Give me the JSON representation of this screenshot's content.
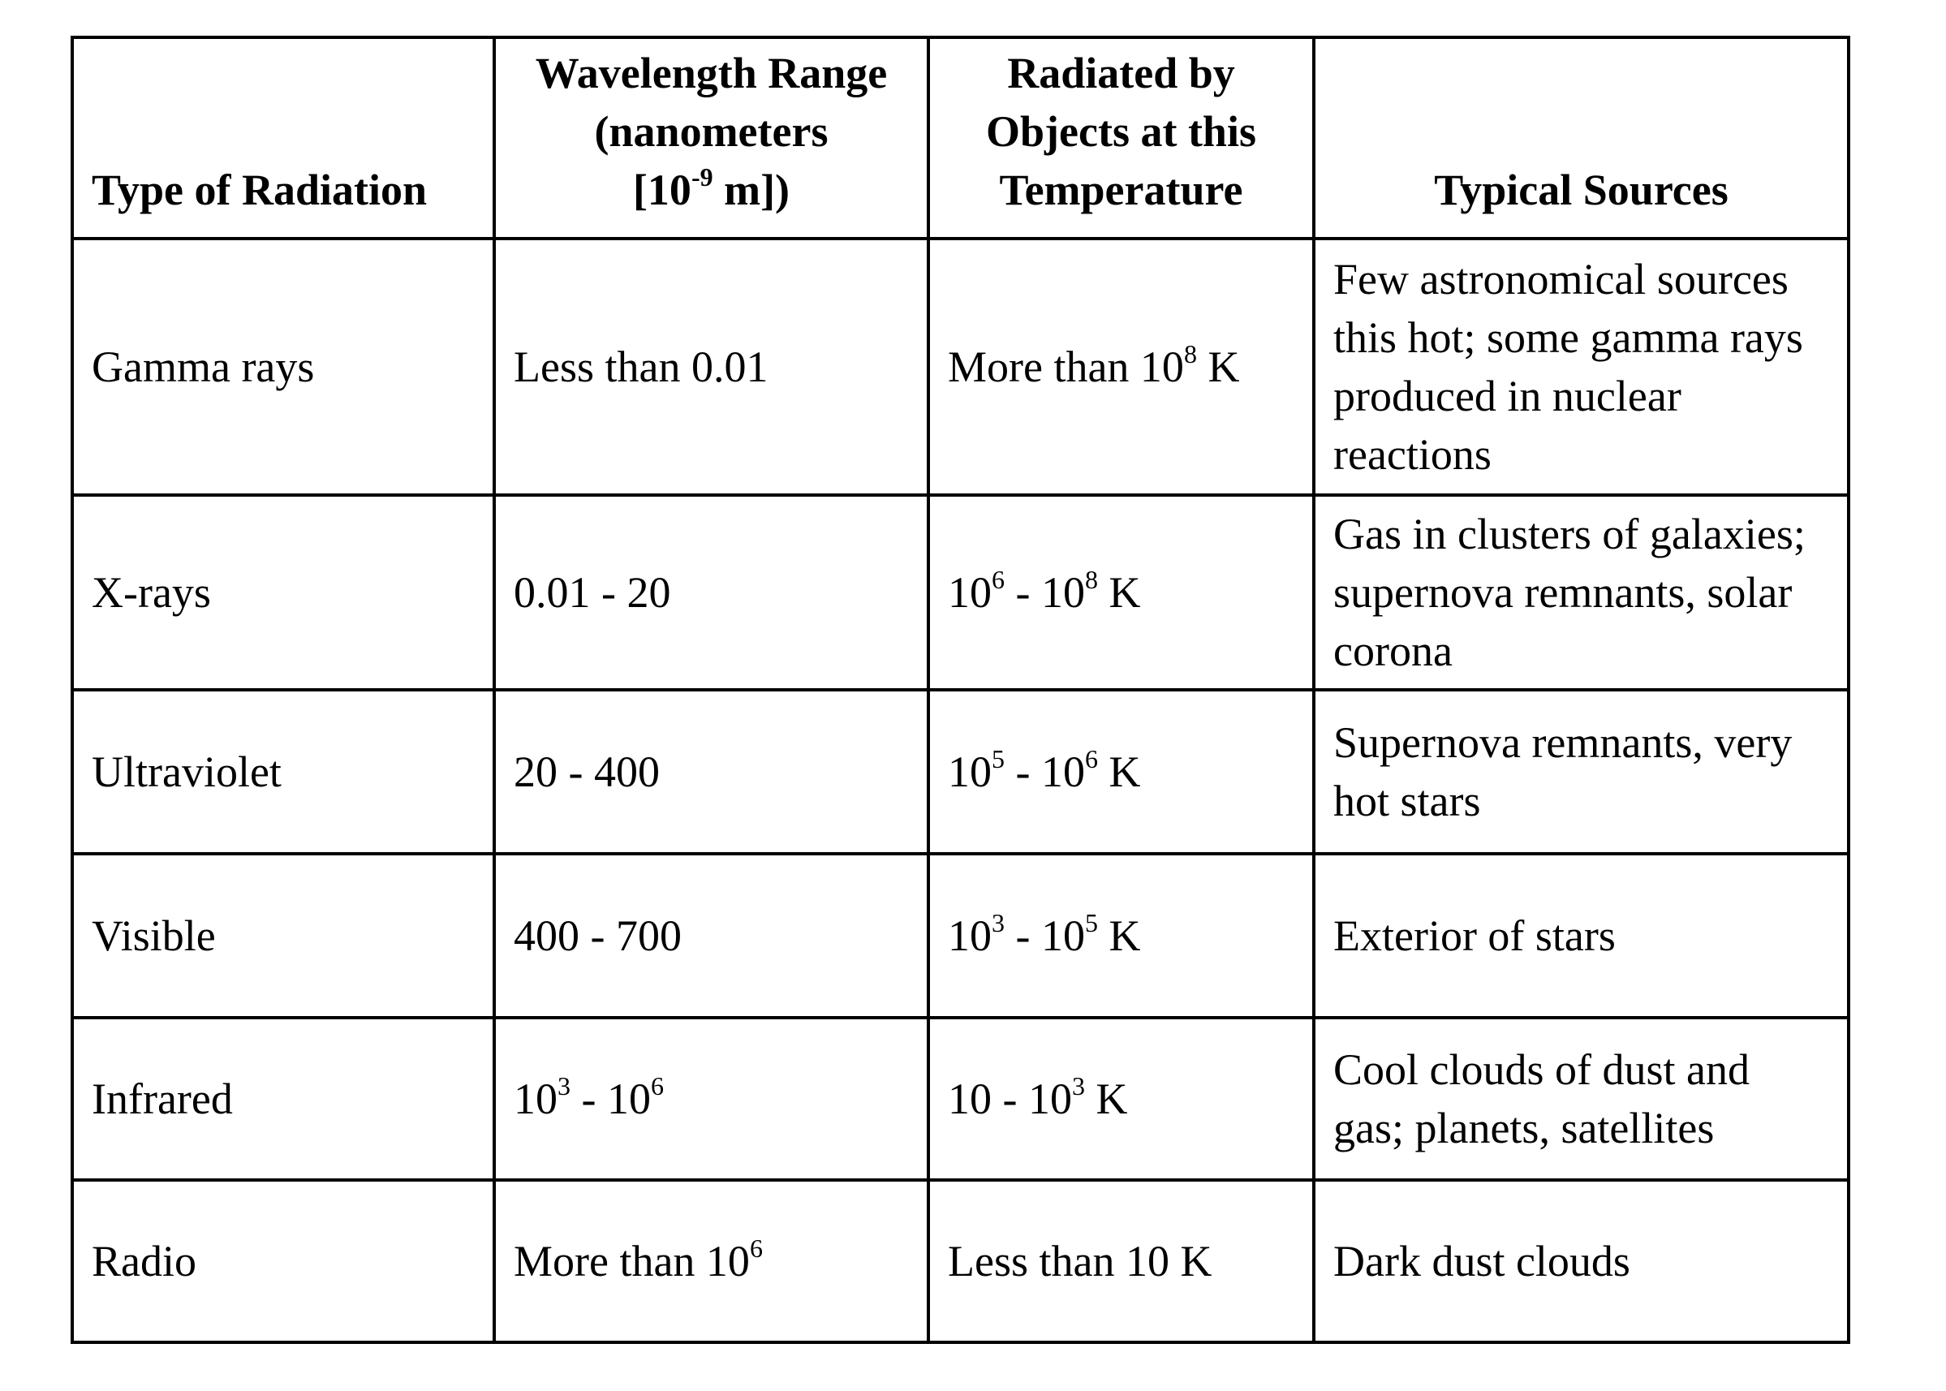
{
  "header": {
    "type": "Type of Radiation",
    "wavelength_line1": "Wavelength Range",
    "wavelength_line2": "(nanometers",
    "wavelength_line3_pre": "[10",
    "wavelength_line3_sup": "-9",
    "wavelength_line3_post": " m])",
    "temp_line1": "Radiated by",
    "temp_line2": "Objects at this",
    "temp_line3": "Temperature",
    "sources": "Typical Sources"
  },
  "rows": [
    {
      "type": "Gamma rays",
      "wavelength": {
        "pre": "Less than 0.01"
      },
      "temperature": {
        "pre": "More than 10",
        "sup": "8",
        "post": " K"
      },
      "sources": "Few astronomical sources this hot; some gamma rays produced in nuclear reactions"
    },
    {
      "type": "X-rays",
      "wavelength": {
        "pre": "0.01 - 20"
      },
      "temperature": {
        "a": "10",
        "a_sup": "6",
        "b": " - 10",
        "b_sup": "8",
        "post": " K"
      },
      "sources": "Gas in clusters of galaxies; supernova remnants, solar corona"
    },
    {
      "type": "Ultraviolet",
      "wavelength": {
        "pre": "20 - 400"
      },
      "temperature": {
        "a": "10",
        "a_sup": "5",
        "b": " - 10",
        "b_sup": "6",
        "post": " K"
      },
      "sources": "Supernova remnants, very hot stars"
    },
    {
      "type": "Visible",
      "wavelength": {
        "pre": "400 - 700"
      },
      "temperature": {
        "a": "10",
        "a_sup": "3",
        "b": " - 10",
        "b_sup": "5",
        "post": " K"
      },
      "sources": "Exterior of stars"
    },
    {
      "type": "Infrared",
      "wavelength": {
        "a": "10",
        "a_sup": "3",
        "b": " - 10",
        "b_sup": "6"
      },
      "temperature": {
        "pre": "10 - 10",
        "sup": "3",
        "post": " K"
      },
      "sources": "Cool clouds of dust and gas; planets, satellites"
    },
    {
      "type": "Radio",
      "wavelength": {
        "pre": "More than 10",
        "sup": "6"
      },
      "temperature": {
        "pre": "Less than 10 K"
      },
      "sources": "Dark dust clouds"
    }
  ]
}
